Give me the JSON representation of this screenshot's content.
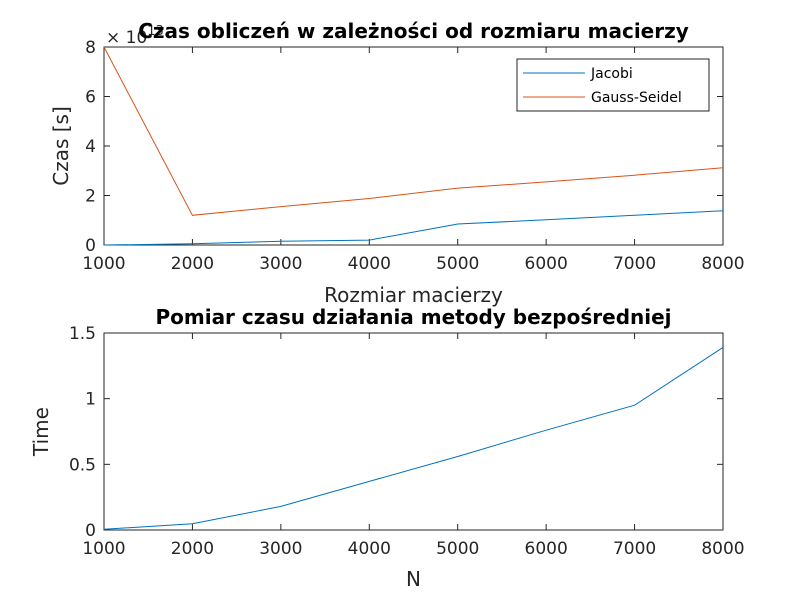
{
  "chart_data": [
    {
      "type": "line",
      "title": "Czas obliczeń w zależności od rozmiaru macierzy",
      "xlabel": "Rozmiar macierzy",
      "ylabel": "Czas [s]",
      "y_exponent_base": "× 10",
      "y_exponent_power": "13",
      "xlim": [
        1000,
        8000
      ],
      "ylim": [
        0,
        8
      ],
      "xticks": [
        1000,
        2000,
        3000,
        4000,
        5000,
        6000,
        7000,
        8000
      ],
      "yticks": [
        0,
        2,
        4,
        6,
        8
      ],
      "x": [
        1000,
        2000,
        3000,
        4000,
        5000,
        6000,
        7000,
        8000
      ],
      "series": [
        {
          "name": "Jacobi",
          "color": "#0072bd",
          "values": [
            0.0,
            0.05,
            0.15,
            0.2,
            0.85,
            1.02,
            1.2,
            1.38
          ]
        },
        {
          "name": "Gauss-Seidel",
          "color": "#d95319",
          "values": [
            8.0,
            1.2,
            1.55,
            1.88,
            2.3,
            2.55,
            2.82,
            3.12
          ]
        }
      ],
      "legend_position": "top-right",
      "grid": false
    },
    {
      "type": "line",
      "title": "Pomiar czasu działania metody bezpośredniej",
      "xlabel": "N",
      "ylabel": "Time",
      "xlim": [
        1000,
        8000
      ],
      "ylim": [
        0,
        1.5
      ],
      "xticks": [
        1000,
        2000,
        3000,
        4000,
        5000,
        6000,
        7000,
        8000
      ],
      "yticks": [
        0,
        0.5,
        1,
        1.5
      ],
      "x": [
        1000,
        2000,
        3000,
        4000,
        5000,
        6000,
        7000,
        8000
      ],
      "series": [
        {
          "color": "#0072bd",
          "values": [
            0.005,
            0.048,
            0.18,
            0.37,
            0.56,
            0.76,
            0.95,
            1.39
          ]
        }
      ],
      "grid": false
    }
  ]
}
